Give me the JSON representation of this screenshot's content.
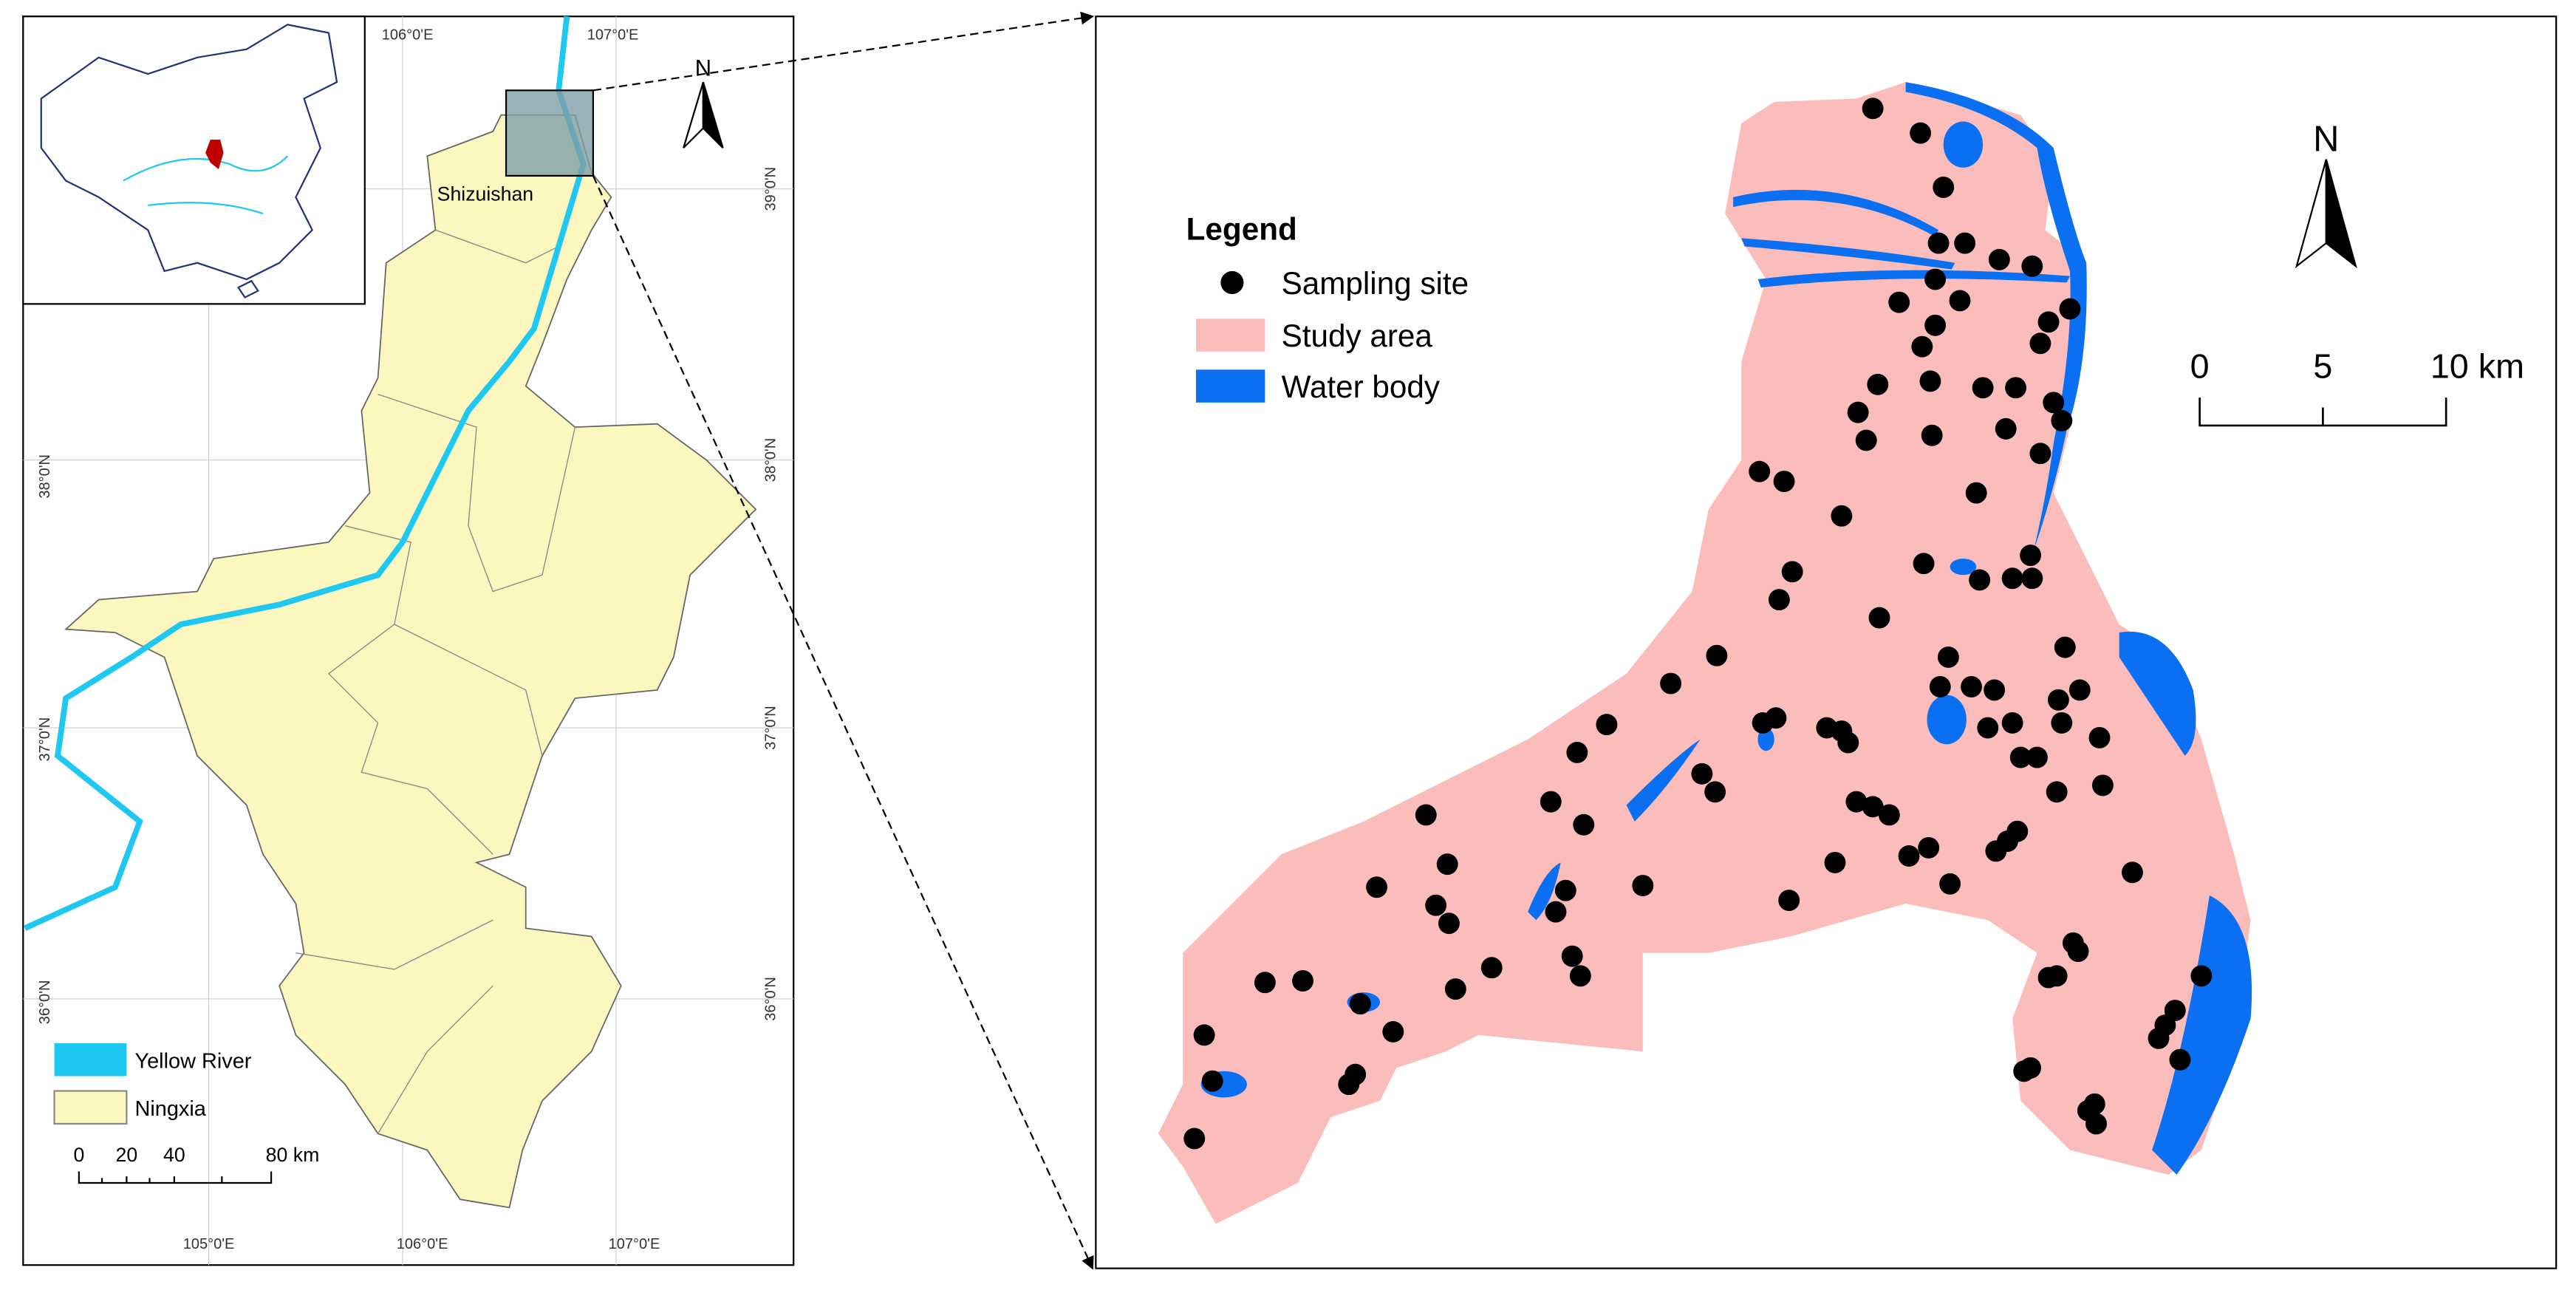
{
  "left_map": {
    "top_lon_labels": [
      "106°0'E",
      "107°0'E"
    ],
    "bottom_lon_labels": [
      "105°0'E",
      "106°0'E",
      "107°0'E"
    ],
    "lat_labels": [
      "39°0'N",
      "38°0'N",
      "37°0'N",
      "36°0'N"
    ],
    "north": "N",
    "place_label": "Shizuishan",
    "legend": [
      "Yellow River",
      "Ningxia"
    ],
    "scale_labels": [
      "0",
      "20",
      "40",
      "80 km"
    ]
  },
  "right_map": {
    "legend_title": "Legend",
    "legend": [
      "Sampling site",
      "Study area",
      "Water body"
    ],
    "north": "N",
    "scale_labels": [
      "0",
      "5",
      "10 km"
    ]
  }
}
